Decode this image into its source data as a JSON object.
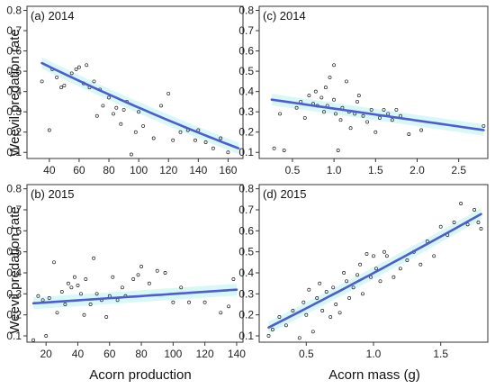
{
  "figure": {
    "ylabel": "Weevil predation rate",
    "xlabel_left": "Acorn production",
    "xlabel_right": "Acorn mass (g)"
  },
  "chart_data": [
    {
      "id": "a",
      "type": "scatter",
      "title": "(a) 2014",
      "xlim": [
        25,
        170
      ],
      "ylim": [
        0.07,
        0.82
      ],
      "xticks": [
        40,
        60,
        80,
        100,
        120,
        140,
        160
      ],
      "yticks": [
        0.1,
        0.2,
        0.3,
        0.4,
        0.5,
        0.6,
        0.7,
        0.8
      ],
      "trend": {
        "x": [
          35,
          167
        ],
        "y": [
          0.54,
          0.12
        ],
        "shape": "convex"
      },
      "points": [
        [
          35,
          0.45
        ],
        [
          40,
          0.21
        ],
        [
          42,
          0.51
        ],
        [
          45,
          0.47
        ],
        [
          48,
          0.42
        ],
        [
          50,
          0.43
        ],
        [
          55,
          0.49
        ],
        [
          58,
          0.51
        ],
        [
          60,
          0.52
        ],
        [
          63,
          0.44
        ],
        [
          65,
          0.53
        ],
        [
          67,
          0.42
        ],
        [
          70,
          0.45
        ],
        [
          72,
          0.28
        ],
        [
          74,
          0.41
        ],
        [
          76,
          0.33
        ],
        [
          80,
          0.37
        ],
        [
          83,
          0.29
        ],
        [
          85,
          0.32
        ],
        [
          88,
          0.24
        ],
        [
          90,
          0.31
        ],
        [
          92,
          0.35
        ],
        [
          95,
          0.09
        ],
        [
          98,
          0.2
        ],
        [
          100,
          0.3
        ],
        [
          103,
          0.23
        ],
        [
          110,
          0.17
        ],
        [
          115,
          0.33
        ],
        [
          120,
          0.39
        ],
        [
          123,
          0.16
        ],
        [
          128,
          0.2
        ],
        [
          133,
          0.21
        ],
        [
          138,
          0.16
        ],
        [
          140,
          0.21
        ],
        [
          145,
          0.15
        ],
        [
          150,
          0.12
        ],
        [
          155,
          0.17
        ],
        [
          160,
          0.1
        ]
      ]
    },
    {
      "id": "c",
      "type": "scatter",
      "title": "(c) 2014",
      "xlim": [
        0.1,
        2.85
      ],
      "ylim": [
        0.07,
        0.82
      ],
      "xticks": [
        0.5,
        1.0,
        1.5,
        2.0,
        2.5
      ],
      "yticks": [
        0.1,
        0.2,
        0.3,
        0.4,
        0.5,
        0.6,
        0.7,
        0.8
      ],
      "trend": {
        "x": [
          0.25,
          2.8
        ],
        "y": [
          0.36,
          0.21
        ],
        "shape": "linear"
      },
      "points": [
        [
          0.28,
          0.12
        ],
        [
          0.35,
          0.29
        ],
        [
          0.4,
          0.11
        ],
        [
          0.55,
          0.32
        ],
        [
          0.6,
          0.35
        ],
        [
          0.65,
          0.27
        ],
        [
          0.7,
          0.38
        ],
        [
          0.75,
          0.34
        ],
        [
          0.78,
          0.4
        ],
        [
          0.8,
          0.33
        ],
        [
          0.85,
          0.37
        ],
        [
          0.88,
          0.3
        ],
        [
          0.9,
          0.42
        ],
        [
          0.92,
          0.33
        ],
        [
          0.95,
          0.47
        ],
        [
          1.0,
          0.53
        ],
        [
          1.0,
          0.36
        ],
        [
          1.02,
          0.29
        ],
        [
          1.05,
          0.11
        ],
        [
          1.08,
          0.26
        ],
        [
          1.1,
          0.32
        ],
        [
          1.15,
          0.45
        ],
        [
          1.18,
          0.3
        ],
        [
          1.2,
          0.22
        ],
        [
          1.25,
          0.29
        ],
        [
          1.28,
          0.35
        ],
        [
          1.3,
          0.38
        ],
        [
          1.35,
          0.28
        ],
        [
          1.4,
          0.25
        ],
        [
          1.45,
          0.31
        ],
        [
          1.5,
          0.2
        ],
        [
          1.55,
          0.27
        ],
        [
          1.6,
          0.31
        ],
        [
          1.65,
          0.29
        ],
        [
          1.7,
          0.26
        ],
        [
          1.75,
          0.31
        ],
        [
          1.8,
          0.28
        ],
        [
          1.9,
          0.19
        ],
        [
          2.05,
          0.21
        ],
        [
          2.8,
          0.23
        ]
      ]
    },
    {
      "id": "b",
      "type": "scatter",
      "title": "(b) 2015",
      "xlim": [
        8,
        144
      ],
      "ylim": [
        0.07,
        0.82
      ],
      "xticks": [
        20,
        40,
        60,
        80,
        100,
        120,
        140
      ],
      "yticks": [
        0.1,
        0.2,
        0.3,
        0.4,
        0.5,
        0.6,
        0.7,
        0.8
      ],
      "trend": {
        "x": [
          12,
          140
        ],
        "y": [
          0.255,
          0.32
        ],
        "shape": "linear"
      },
      "points": [
        [
          12,
          0.08
        ],
        [
          15,
          0.29
        ],
        [
          18,
          0.27
        ],
        [
          20,
          0.1
        ],
        [
          22,
          0.28
        ],
        [
          25,
          0.45
        ],
        [
          27,
          0.21
        ],
        [
          30,
          0.31
        ],
        [
          32,
          0.25
        ],
        [
          34,
          0.35
        ],
        [
          36,
          0.33
        ],
        [
          38,
          0.38
        ],
        [
          40,
          0.34
        ],
        [
          42,
          0.3
        ],
        [
          44,
          0.2
        ],
        [
          45,
          0.37
        ],
        [
          48,
          0.25
        ],
        [
          50,
          0.47
        ],
        [
          52,
          0.3
        ],
        [
          55,
          0.27
        ],
        [
          58,
          0.19
        ],
        [
          60,
          0.29
        ],
        [
          62,
          0.38
        ],
        [
          65,
          0.27
        ],
        [
          68,
          0.33
        ],
        [
          70,
          0.29
        ],
        [
          75,
          0.37
        ],
        [
          78,
          0.39
        ],
        [
          80,
          0.43
        ],
        [
          85,
          0.35
        ],
        [
          90,
          0.41
        ],
        [
          95,
          0.4
        ],
        [
          100,
          0.26
        ],
        [
          105,
          0.33
        ],
        [
          110,
          0.26
        ],
        [
          120,
          0.26
        ],
        [
          130,
          0.21
        ],
        [
          135,
          0.24
        ],
        [
          138,
          0.37
        ]
      ]
    },
    {
      "id": "d",
      "type": "scatter",
      "title": "(d) 2015",
      "xlim": [
        0.15,
        1.85
      ],
      "ylim": [
        0.07,
        0.82
      ],
      "xticks": [
        0.5,
        1.0,
        1.5
      ],
      "yticks": [
        0.1,
        0.2,
        0.3,
        0.4,
        0.5,
        0.6,
        0.7,
        0.8
      ],
      "trend": {
        "x": [
          0.22,
          1.8
        ],
        "y": [
          0.14,
          0.68
        ],
        "shape": "concave-slight"
      },
      "points": [
        [
          0.22,
          0.1
        ],
        [
          0.25,
          0.13
        ],
        [
          0.3,
          0.19
        ],
        [
          0.35,
          0.15
        ],
        [
          0.4,
          0.22
        ],
        [
          0.45,
          0.09
        ],
        [
          0.48,
          0.26
        ],
        [
          0.5,
          0.2
        ],
        [
          0.52,
          0.32
        ],
        [
          0.55,
          0.12
        ],
        [
          0.58,
          0.28
        ],
        [
          0.6,
          0.35
        ],
        [
          0.62,
          0.22
        ],
        [
          0.65,
          0.31
        ],
        [
          0.68,
          0.19
        ],
        [
          0.7,
          0.33
        ],
        [
          0.72,
          0.25
        ],
        [
          0.75,
          0.21
        ],
        [
          0.78,
          0.4
        ],
        [
          0.8,
          0.36
        ],
        [
          0.82,
          0.28
        ],
        [
          0.85,
          0.33
        ],
        [
          0.88,
          0.39
        ],
        [
          0.9,
          0.44
        ],
        [
          0.92,
          0.3
        ],
        [
          0.95,
          0.49
        ],
        [
          0.98,
          0.38
        ],
        [
          1.0,
          0.48
        ],
        [
          1.02,
          0.42
        ],
        [
          1.05,
          0.36
        ],
        [
          1.08,
          0.5
        ],
        [
          1.1,
          0.48
        ],
        [
          1.15,
          0.38
        ],
        [
          1.2,
          0.42
        ],
        [
          1.25,
          0.46
        ],
        [
          1.3,
          0.5
        ],
        [
          1.35,
          0.44
        ],
        [
          1.4,
          0.55
        ],
        [
          1.45,
          0.48
        ],
        [
          1.5,
          0.62
        ],
        [
          1.55,
          0.58
        ],
        [
          1.6,
          0.64
        ],
        [
          1.65,
          0.73
        ],
        [
          1.7,
          0.63
        ],
        [
          1.75,
          0.7
        ],
        [
          1.78,
          0.64
        ],
        [
          1.8,
          0.61
        ]
      ]
    }
  ]
}
